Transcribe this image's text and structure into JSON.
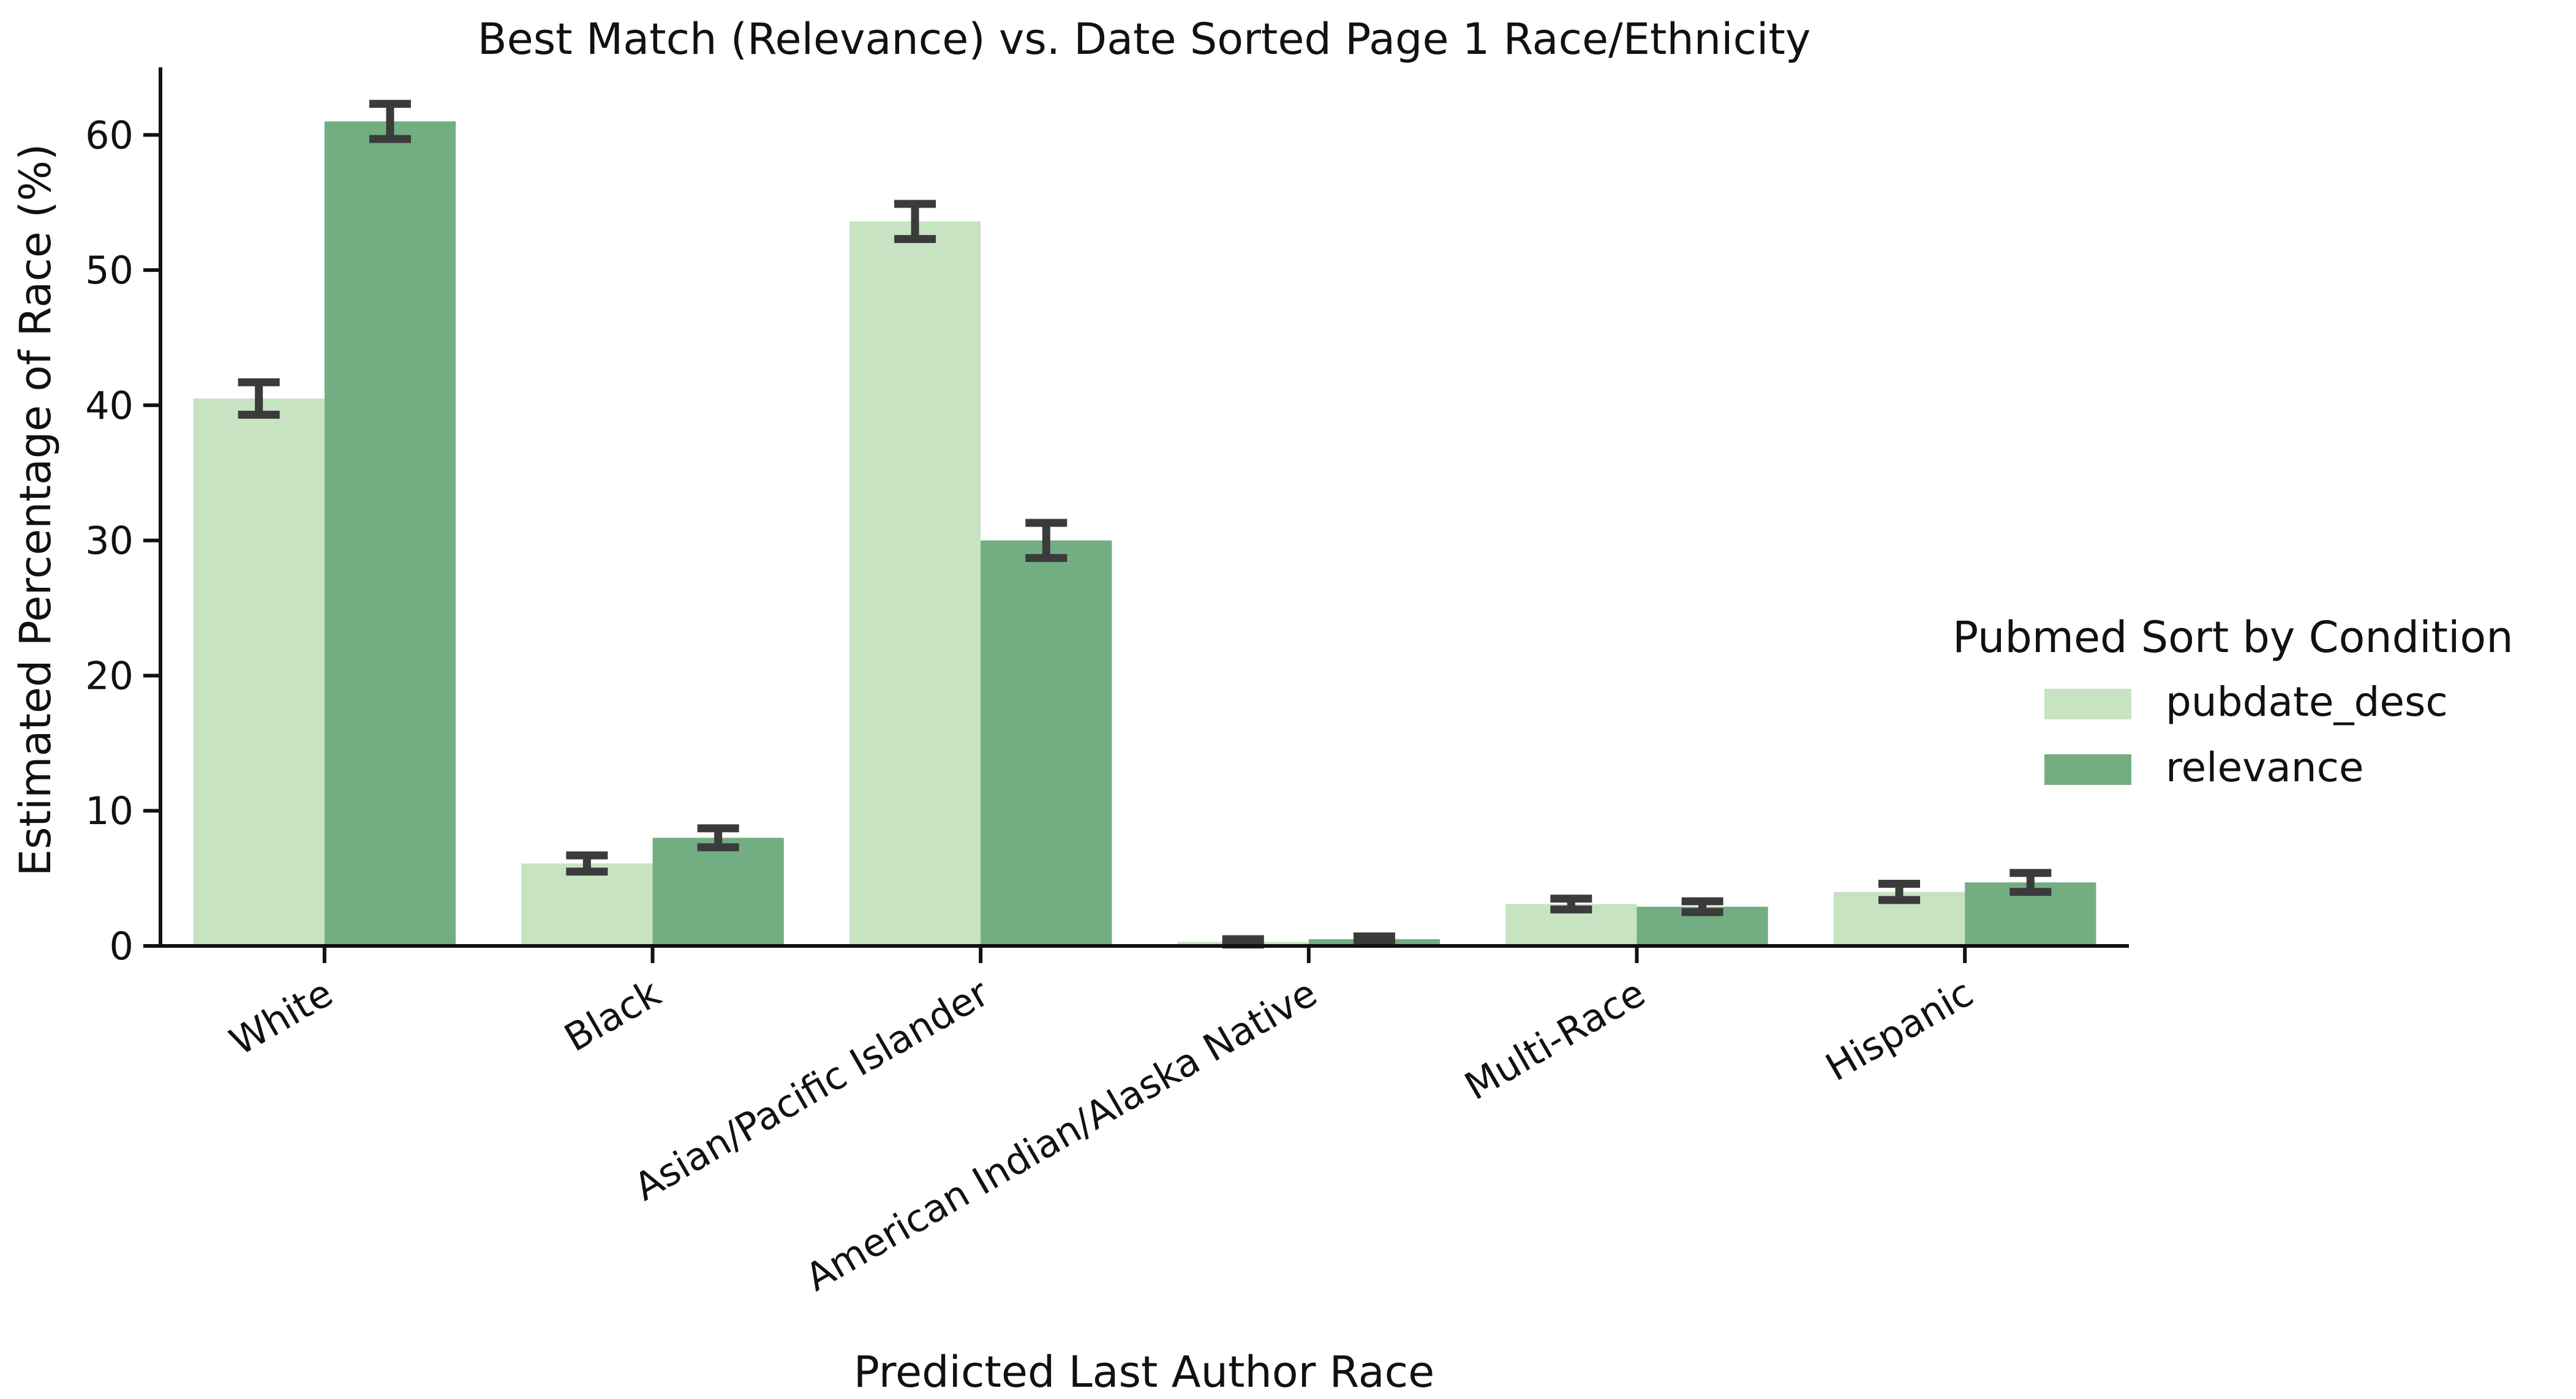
{
  "chart_data": {
    "type": "bar",
    "title": "Best Match (Relevance) vs. Date Sorted Page 1 Race/Ethnicity",
    "xlabel": "Predicted Last Author Race",
    "ylabel": "Estimated Percentage of Race (%)",
    "ylim": [
      0,
      65
    ],
    "yticks": [
      0,
      10,
      20,
      30,
      40,
      50,
      60
    ],
    "categories": [
      "White",
      "Black",
      "Asian/Pacific Islander",
      "American Indian/Alaska Native",
      "Multi-Race",
      "Hispanic"
    ],
    "series": [
      {
        "name": "pubdate_desc",
        "color": "#c7e3c2",
        "values": [
          40.5,
          6.1,
          53.6,
          0.3,
          3.1,
          4.0
        ],
        "error": [
          [
            39.3,
            41.7
          ],
          [
            5.5,
            6.7
          ],
          [
            52.3,
            54.9
          ],
          [
            0.1,
            0.5
          ],
          [
            2.7,
            3.5
          ],
          [
            3.4,
            4.6
          ]
        ]
      },
      {
        "name": "relevance",
        "color": "#72ae82",
        "values": [
          61.0,
          8.0,
          30.0,
          0.5,
          2.9,
          4.7
        ],
        "error": [
          [
            59.7,
            62.3
          ],
          [
            7.3,
            8.7
          ],
          [
            28.7,
            31.3
          ],
          [
            0.2,
            0.7
          ],
          [
            2.5,
            3.3
          ],
          [
            4.0,
            5.4
          ]
        ]
      }
    ],
    "error_color": "#3b3b3b",
    "legend": {
      "title": "Pubmed Sort by Condition",
      "position": "center-right"
    },
    "grid": false
  }
}
